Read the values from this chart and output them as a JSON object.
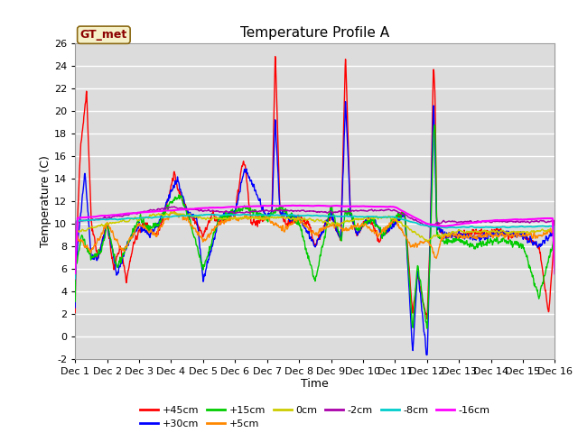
{
  "title": "Temperature Profile A",
  "xlabel": "Time",
  "ylabel": "Temperature (C)",
  "ylim": [
    -2,
    26
  ],
  "xlim": [
    0,
    15
  ],
  "xtick_labels": [
    "Dec 1",
    "Dec 2",
    "Dec 3",
    "Dec 4",
    "Dec 5",
    "Dec 6",
    "Dec 7",
    "Dec 8",
    "Dec 9",
    "Dec 10",
    "Dec 11",
    "Dec 12",
    "Dec 13",
    "Dec 14",
    "Dec 15",
    "Dec 16"
  ],
  "ytick_values": [
    -2,
    0,
    2,
    4,
    6,
    8,
    10,
    12,
    14,
    16,
    18,
    20,
    22,
    24,
    26
  ],
  "annotation_text": "GT_met",
  "annotation_color": "#8B0000",
  "annotation_bg": "#F5F0C8",
  "series_order": [
    "+45cm",
    "+30cm",
    "+15cm",
    "+5cm",
    "0cm",
    "-2cm",
    "-8cm",
    "-16cm"
  ],
  "series": {
    "+45cm": {
      "color": "#FF0000",
      "lw": 1.0
    },
    "+30cm": {
      "color": "#0000FF",
      "lw": 1.0
    },
    "+15cm": {
      "color": "#00CC00",
      "lw": 1.0
    },
    "+5cm": {
      "color": "#FF8800",
      "lw": 1.0
    },
    "0cm": {
      "color": "#CCCC00",
      "lw": 1.0
    },
    "-2cm": {
      "color": "#AA00AA",
      "lw": 1.0
    },
    "-8cm": {
      "color": "#00CCCC",
      "lw": 1.2
    },
    "-16cm": {
      "color": "#FF00FF",
      "lw": 1.5
    }
  },
  "bg_color": "#DCDCDC",
  "grid_color": "white",
  "fig_bg": "white",
  "legend_ncol": 6,
  "legend_fontsize": 8
}
